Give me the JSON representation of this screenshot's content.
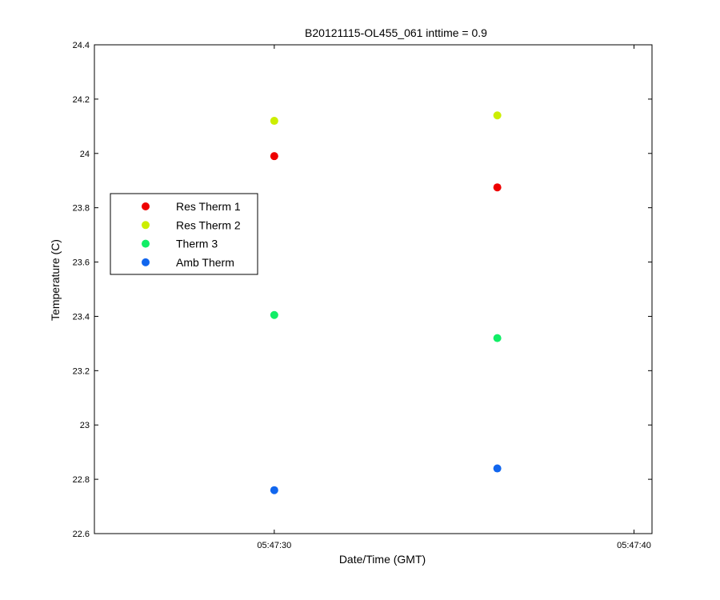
{
  "chart_data": {
    "type": "scatter",
    "title": "B20121115-OL455_061 inttime = 0.9",
    "xlabel": "Date/Time (GMT)",
    "ylabel": "Temperature (C)",
    "x_unit": "time",
    "xlim": [
      "05:47:25",
      "05:47:40.5"
    ],
    "ylim": [
      22.6,
      24.4
    ],
    "x_ticks": [
      "05:47:30",
      "05:47:40"
    ],
    "y_ticks": [
      22.6,
      22.8,
      23,
      23.2,
      23.4,
      23.6,
      23.8,
      24,
      24.2,
      24.4
    ],
    "y_tick_labels": [
      "22.6",
      "22.8",
      "23",
      "23.2",
      "23.4",
      "23.6",
      "23.8",
      "24",
      "24.2",
      "24.4"
    ],
    "grid": false,
    "legend_position": "left",
    "series": [
      {
        "name": "Res Therm 1",
        "color": "#ee0000",
        "x": [
          "05:47:30",
          "05:47:36.2"
        ],
        "y": [
          23.99,
          23.875
        ]
      },
      {
        "name": "Res Therm 2",
        "color": "#ccee00",
        "x": [
          "05:47:30",
          "05:47:36.2"
        ],
        "y": [
          24.12,
          24.14
        ]
      },
      {
        "name": "Therm 3",
        "color": "#11ee66",
        "x": [
          "05:47:30",
          "05:47:36.2"
        ],
        "y": [
          23.405,
          23.32
        ]
      },
      {
        "name": "Amb Therm",
        "color": "#1166ee",
        "x": [
          "05:47:30",
          "05:47:36.2"
        ],
        "y": [
          22.76,
          22.84
        ]
      }
    ]
  }
}
